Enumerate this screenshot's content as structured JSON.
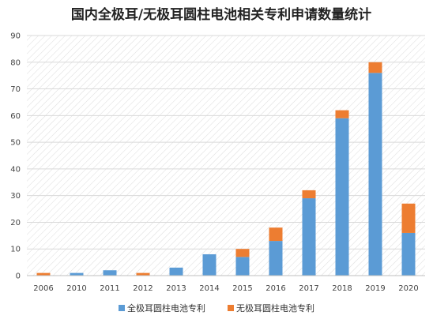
{
  "chart_data": {
    "type": "bar",
    "stacked": true,
    "title": "国内全极耳/无极耳圆柱电池相关专利申请数量统计",
    "xlabel": "",
    "ylabel": "",
    "categories": [
      "2006",
      "2010",
      "2011",
      "2012",
      "2013",
      "2014",
      "2015",
      "2016",
      "2017",
      "2018",
      "2019",
      "2020"
    ],
    "ylim": [
      0,
      90
    ],
    "yticks": [
      0,
      10,
      20,
      30,
      40,
      50,
      60,
      70,
      80,
      90
    ],
    "grid": true,
    "legend_position": "bottom",
    "series": [
      {
        "name": "全极耳圆柱电池专利",
        "color": "#5b9bd5",
        "values": [
          0,
          1,
          2,
          0,
          3,
          8,
          7,
          13,
          29,
          59,
          76,
          16
        ]
      },
      {
        "name": "无极耳圆柱电池专利",
        "color": "#ed7d31",
        "values": [
          1,
          0,
          0,
          1,
          0,
          0,
          3,
          5,
          3,
          3,
          4,
          11
        ]
      }
    ]
  }
}
